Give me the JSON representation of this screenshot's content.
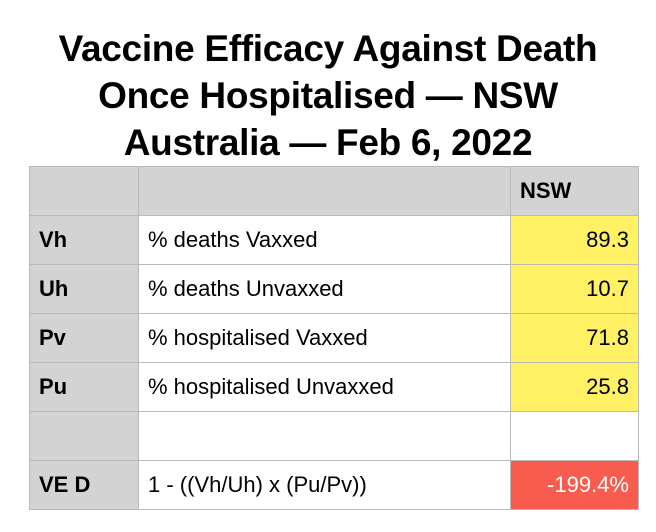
{
  "title": {
    "line1": "Vaccine Efficacy Against Death",
    "line2": "Once Hospitalised — NSW",
    "line3": "Australia — Feb 6, 2022"
  },
  "table": {
    "header": {
      "col1": "",
      "col2": "",
      "col3": "NSW"
    },
    "rows": [
      {
        "label": "Vh",
        "description": "% deaths Vaxxed",
        "value": "89.3"
      },
      {
        "label": "Uh",
        "description": "% deaths Unvaxxed",
        "value": "10.7"
      },
      {
        "label": "Pv",
        "description": "% hospitalised Vaxxed",
        "value": "71.8"
      },
      {
        "label": "Pu",
        "description": "% hospitalised Unvaxxed",
        "value": "25.8"
      }
    ],
    "result": {
      "label": "VE D",
      "formula": "1 - ((Vh/Uh) x (Pu/Pv))",
      "value": "-199.4%"
    }
  },
  "colors": {
    "header_gray": "#d3d3d3",
    "value_yellow": "#fff064",
    "result_red": "#f75c4e"
  }
}
